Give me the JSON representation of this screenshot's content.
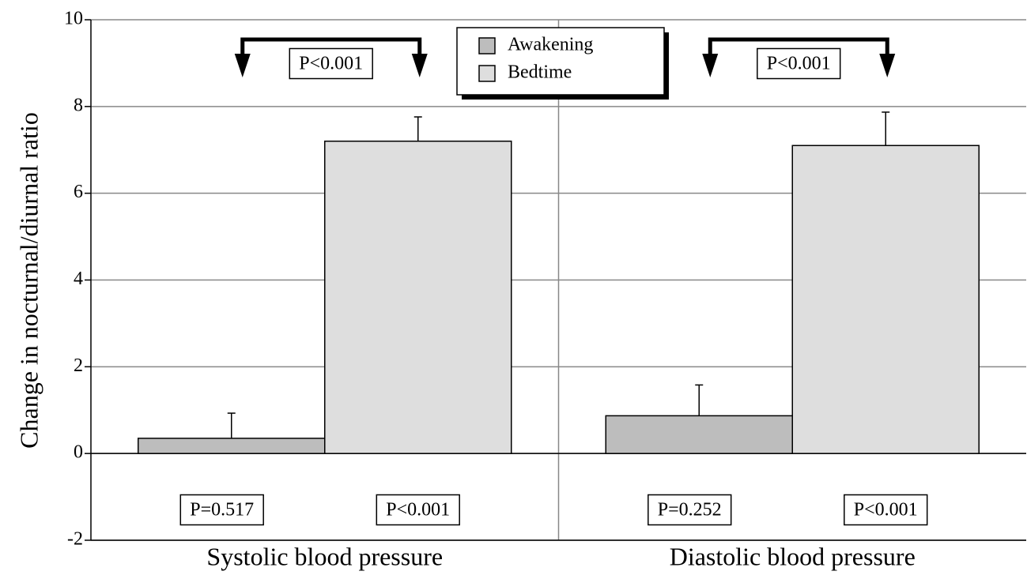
{
  "chart_data": {
    "type": "bar",
    "ylabel": "Change in nocturnal/diurnal ratio",
    "categories": [
      "Systolic blood pressure",
      "Diastolic blood pressure"
    ],
    "series": [
      {
        "name": "Awakening",
        "color": "#bdbdbd",
        "values": [
          0.35,
          0.87
        ],
        "errors": [
          0.58,
          0.71
        ],
        "p_labels": [
          "P=0.517",
          "P=0.252"
        ]
      },
      {
        "name": "Bedtime",
        "color": "#dedede",
        "values": [
          7.2,
          7.1
        ],
        "errors": [
          0.56,
          0.77
        ],
        "p_labels": [
          "P<0.001",
          "P<0.001"
        ]
      }
    ],
    "bracket_labels": [
      "P<0.001",
      "P<0.001"
    ],
    "ylim": [
      -2,
      10
    ],
    "yticks": [
      -2,
      0,
      2,
      4,
      6,
      8,
      10
    ],
    "grid": true
  }
}
